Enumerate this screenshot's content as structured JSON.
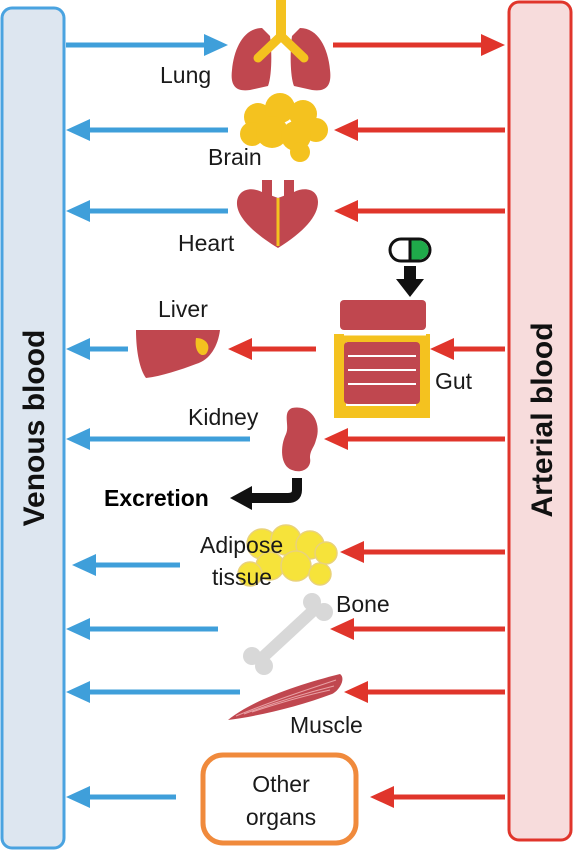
{
  "columns": {
    "venous": {
      "label": "Venous blood",
      "fill": "#dde6f0",
      "stroke": "#4aa3e0"
    },
    "arterial": {
      "label": "Arterial blood",
      "fill": "#f7dcdc",
      "stroke": "#e0352b"
    }
  },
  "colors": {
    "venous_arrow": "#3f9fda",
    "arterial_arrow": "#e0352b",
    "organ_red": "#c0474f",
    "organ_yellow": "#f4c21f",
    "bone_gray": "#d8d8d8",
    "other_box": "#f08a3c",
    "pill_green": "#1faa4a"
  },
  "organs": [
    {
      "id": "lung",
      "label": "Lung",
      "icon": "lung-icon"
    },
    {
      "id": "brain",
      "label": "Brain",
      "icon": "brain-icon"
    },
    {
      "id": "heart",
      "label": "Heart",
      "icon": "heart-icon"
    },
    {
      "id": "liver",
      "label": "Liver",
      "icon": "liver-icon"
    },
    {
      "id": "gut",
      "label": "Gut",
      "icon": "gut-icon"
    },
    {
      "id": "kidney",
      "label": "Kidney",
      "icon": "kidney-icon"
    },
    {
      "id": "adipose",
      "label_line1": "Adipose",
      "label_line2": "tissue",
      "icon": "adipose-icon"
    },
    {
      "id": "bone",
      "label": "Bone",
      "icon": "bone-icon"
    },
    {
      "id": "muscle",
      "label": "Muscle",
      "icon": "muscle-icon"
    },
    {
      "id": "other",
      "label_line1": "Other",
      "label_line2": "organs"
    }
  ],
  "excretion": {
    "label": "Excretion"
  },
  "oral_dose": {
    "icon": "pill-icon"
  }
}
